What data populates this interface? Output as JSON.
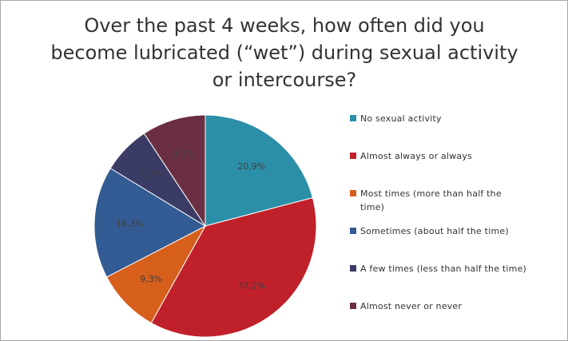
{
  "chart_data": {
    "type": "pie",
    "title": "Over the past 4 weeks, how often did you become lubricated (“wet”) during sexual activity or intercourse?",
    "categories": [
      "No sexual activity",
      "Almost always or always",
      "Most times (more than half the time)",
      "Sometimes (about half the time)",
      "A few times (less than half the time)",
      "Almost never or never"
    ],
    "values": [
      20.9,
      37.2,
      9.3,
      16.3,
      7.0,
      9.3
    ],
    "value_labels": [
      "20,9%",
      "37,2%",
      "9,3%",
      "16,3%",
      "7,0%",
      "9,3%"
    ],
    "colors": [
      "#2b8fa7",
      "#c0202a",
      "#d65f1c",
      "#335b94",
      "#3a3c66",
      "#6b2f43"
    ],
    "legend_position": "right"
  }
}
